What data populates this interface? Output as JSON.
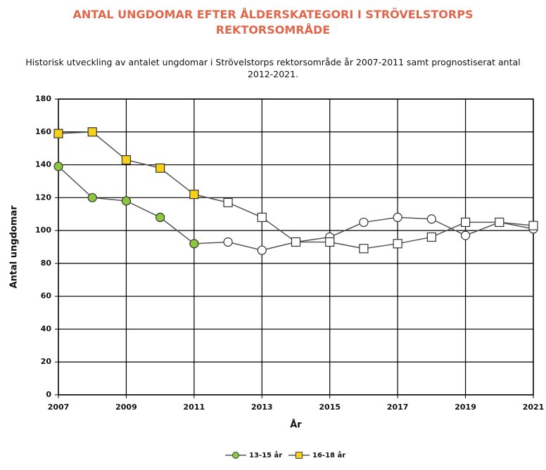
{
  "chart_data": {
    "type": "line",
    "title": "ANTAL UNGDOMAR EFTER ÅLDERSKATEGORI I STRÖVELSTORPS REKTORSOMRÅDE",
    "subtitle": "Historisk utveckling av antalet ungdomar i  Strövelstorps rektorsområde år 2007-2011 samt prognostiserat antal 2012-2021.",
    "x_label": "År",
    "y_label": "Antal ungdomar",
    "x": [
      2007,
      2008,
      2009,
      2010,
      2011,
      2012,
      2013,
      2014,
      2015,
      2016,
      2017,
      2018,
      2019,
      2020,
      2021
    ],
    "series": [
      {
        "name": "13-15 år",
        "color": "#8dc63f",
        "marker": "circle",
        "values": [
          139,
          120,
          118,
          108,
          92,
          93,
          88,
          93,
          96,
          105,
          108,
          107,
          97,
          105,
          101
        ]
      },
      {
        "name": "16-18 år",
        "color": "#f7d117",
        "marker": "square",
        "values": [
          159,
          160,
          143,
          138,
          122,
          117,
          108,
          93,
          93,
          89,
          92,
          96,
          105,
          105,
          103
        ]
      }
    ],
    "forecast_from": 2012,
    "line_color": "#555555",
    "xlim": [
      2007,
      2021
    ],
    "xticks": [
      2007,
      2009,
      2011,
      2013,
      2015,
      2017,
      2019,
      2021
    ],
    "ylim": [
      0,
      180
    ],
    "yticks": [
      0,
      20,
      40,
      60,
      80,
      100,
      120,
      140,
      160,
      180
    ],
    "grid": true,
    "legend": "bottom"
  }
}
